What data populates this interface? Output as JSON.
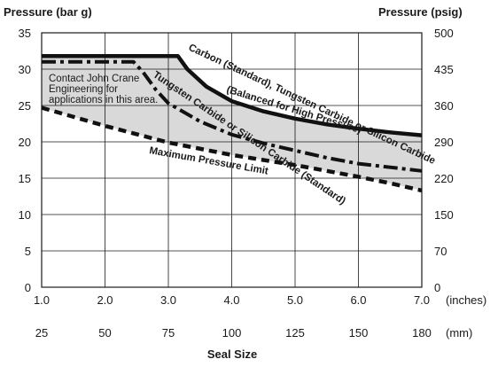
{
  "chart_data": {
    "type": "line",
    "left_axis_title": "Pressure (bar g)",
    "right_axis_title": "Pressure (psig)",
    "xlabel": "Seal Size",
    "x_unit_top": "(inches)",
    "x_unit_bottom": "(mm)",
    "xlim": [
      1.0,
      7.0
    ],
    "ylim": [
      0,
      35
    ],
    "x_ticks_inches": [
      "1.0",
      "2.0",
      "3.0",
      "4.0",
      "5.0",
      "6.0",
      "7.0"
    ],
    "x_ticks_mm": [
      "25",
      "50",
      "75",
      "100",
      "125",
      "150",
      "180"
    ],
    "y_ticks_bar": [
      "0",
      "5",
      "10",
      "15",
      "20",
      "25",
      "30",
      "35"
    ],
    "y_ticks_psig": [
      {
        "label": "0",
        "bar": 0
      },
      {
        "label": "70",
        "bar": 5
      },
      {
        "label": "150",
        "bar": 10
      },
      {
        "label": "220",
        "bar": 15
      },
      {
        "label": "290",
        "bar": 20
      },
      {
        "label": "360",
        "bar": 25
      },
      {
        "label": "435",
        "bar": 30
      },
      {
        "label": "500",
        "bar": 35
      }
    ],
    "grid": true,
    "shaded_region_note": "Contact John Crane Engineering for applications in this area.",
    "note_lines": [
      "Contact John Crane",
      "Engineering for",
      "applications in this area."
    ],
    "series": [
      {
        "name": "Carbon (Standard), Tungsten Carbide or Silicon Carbide (Balanced for High Pressure)",
        "label_lines": [
          "Carbon (Standard), Tungsten Carbide or Silicon Carbide",
          "(Balanced for High Pressure)"
        ],
        "style": "solid",
        "x": [
          1.0,
          3.15,
          3.3,
          3.6,
          4.0,
          4.5,
          5.0,
          5.5,
          6.0,
          6.5,
          7.0
        ],
        "y": [
          31.8,
          31.8,
          30.0,
          27.6,
          25.6,
          24.2,
          23.2,
          22.4,
          21.8,
          21.3,
          20.9
        ]
      },
      {
        "name": "Tungsten Carbide or Silicon Carbide (Standard)",
        "label_lines": [
          "Tungsten Carbide or Silicon Carbide (Standard)"
        ],
        "style": "dash-dot",
        "x": [
          1.0,
          2.45,
          2.6,
          2.8,
          3.0,
          3.5,
          4.0,
          4.5,
          5.0,
          5.5,
          6.0,
          6.5,
          7.0
        ],
        "y": [
          31.0,
          31.0,
          29.6,
          27.2,
          25.3,
          22.8,
          21.0,
          19.8,
          18.8,
          17.8,
          17.0,
          16.5,
          16.0
        ]
      },
      {
        "name": "Maximum Pressure Limit",
        "label_lines": [
          "Maximum Pressure Limit"
        ],
        "style": "dashed",
        "x": [
          1.0,
          2.0,
          3.0,
          4.0,
          5.0,
          5.5,
          6.0,
          6.5,
          7.0
        ],
        "y": [
          24.7,
          22.2,
          19.9,
          18.2,
          16.8,
          16.0,
          15.2,
          14.3,
          13.3
        ]
      }
    ]
  }
}
